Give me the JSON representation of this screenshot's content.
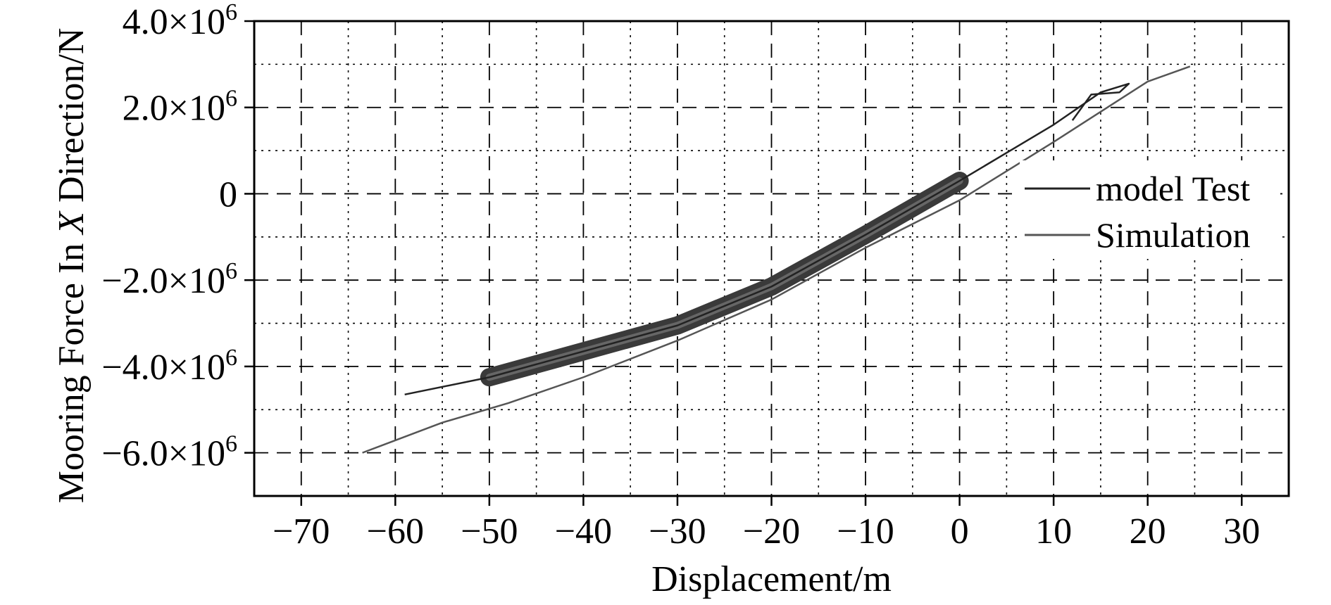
{
  "chart_data": {
    "type": "line",
    "title": "",
    "xlabel": "Displacement/m",
    "ylabel": {
      "prefix": "Mooring Force In ",
      "italic": "X",
      "suffix": " Direction/N"
    },
    "xlim": [
      -75,
      35
    ],
    "ylim": [
      -7000000,
      4000000
    ],
    "x_ticks": [
      -70,
      -60,
      -50,
      -40,
      -30,
      -20,
      -10,
      0,
      10,
      20,
      30
    ],
    "x_tick_labels": [
      "−70",
      "−60",
      "−50",
      "−40",
      "−30",
      "−20",
      "−10",
      "0",
      "10",
      "20",
      "30"
    ],
    "y_ticks": [
      {
        "value": 4000000,
        "mantissa": "4.0×10",
        "exp": "6"
      },
      {
        "value": 2000000,
        "mantissa": "2.0×10",
        "exp": "6"
      },
      {
        "value": 0,
        "mantissa": "0",
        "exp": ""
      },
      {
        "value": -2000000,
        "mantissa": "−2.0×10",
        "exp": "6"
      },
      {
        "value": -4000000,
        "mantissa": "−4.0×10",
        "exp": "6"
      },
      {
        "value": -6000000,
        "mantissa": "−6.0×10",
        "exp": "6"
      }
    ],
    "grid": true,
    "legend_position": "right",
    "series": [
      {
        "name": "model Test",
        "color": "#222222",
        "x": [
          -59,
          -50,
          -40,
          -30,
          -20,
          -10,
          0,
          5,
          10,
          15,
          18,
          17,
          14,
          12
        ],
        "y": [
          -4650000,
          -4250000,
          -3650000,
          -3050000,
          -2150000,
          -950000,
          300000,
          950000,
          1600000,
          2350000,
          2550000,
          2350000,
          2300000,
          1700000
        ]
      },
      {
        "name": "Simulation",
        "color": "#555555",
        "x": [
          -63.5,
          -55,
          -48,
          -40,
          -30,
          -20,
          -10,
          0,
          10,
          20,
          24.5
        ],
        "y": [
          -6000000,
          -5300000,
          -4850000,
          -4250000,
          -3400000,
          -2450000,
          -1250000,
          -150000,
          1200000,
          2600000,
          2950000
        ]
      }
    ]
  }
}
